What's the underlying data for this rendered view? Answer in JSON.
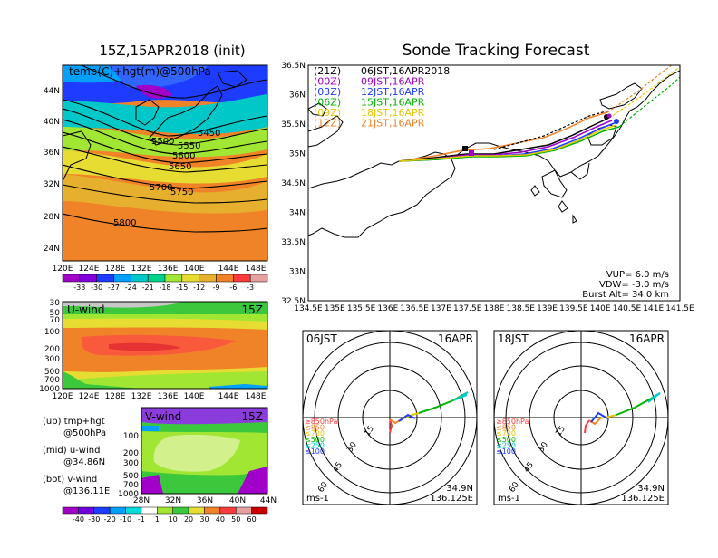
{
  "header": {
    "left_title": "15Z,15APR2018 (init)",
    "right_title": "Sonde Tracking Forecast"
  },
  "map500": {
    "label": "temp(C)+hgt(m)@500hPa",
    "contour_labels": [
      "5450",
      "5500",
      "5550",
      "5600",
      "5650",
      "5700",
      "5750",
      "5800"
    ],
    "lat_ticks": [
      "44N",
      "40N",
      "36N",
      "32N",
      "28N",
      "24N"
    ],
    "lon_ticks": [
      "120E",
      "124E",
      "128E",
      "132E",
      "136E",
      "140E",
      "144E",
      "148E"
    ],
    "colorbar_labels": [
      "-33",
      "-30",
      "-27",
      "-24",
      "-21",
      "-18",
      "-15",
      "-12",
      "-9",
      "-6",
      "-3"
    ],
    "colorbar_colors": [
      "#a000c8",
      "#8200dc",
      "#1e3cff",
      "#00a0ff",
      "#00c8c8",
      "#00d28c",
      "#a0e632",
      "#e6dc32",
      "#e6af2d",
      "#f08228",
      "#fa3c3c",
      "#e6a0a0"
    ]
  },
  "uwind": {
    "label": "U-wind",
    "time": "15Z",
    "p_ticks": [
      "30",
      "50",
      "70",
      "100",
      "200",
      "300",
      "500",
      "700",
      "1000"
    ],
    "lon_ticks": [
      "120E",
      "124E",
      "128E",
      "132E",
      "136E",
      "140E",
      "144E",
      "148E"
    ]
  },
  "vwind": {
    "label": "V-wind",
    "time": "15Z",
    "p_ticks": [
      "100",
      "200",
      "300",
      "500",
      "700",
      "1000"
    ],
    "lat_ticks": [
      "28N",
      "32N",
      "36N",
      "40N",
      "44N"
    ]
  },
  "legend_notes": [
    {
      "a": "(up) tmp+hgt",
      "b": "@500hPa"
    },
    {
      "a": "(mid) u-wind",
      "b": "@34.86N"
    },
    {
      "a": "(bot) v-wind",
      "b": "@136.11E"
    }
  ],
  "wind_colorbar": {
    "labels": [
      "-40",
      "-30",
      "-20",
      "-10",
      "-1",
      "1",
      "10",
      "20",
      "30",
      "40",
      "50",
      "60"
    ],
    "colors": [
      "#a000c8",
      "#6e00dc",
      "#1e3cff",
      "#00a0ff",
      "#00dcdc",
      "#ffffff",
      "#a0e632",
      "#3cc83c",
      "#e6dc32",
      "#f08228",
      "#fa3c3c",
      "#e6a0a0",
      "#c80000"
    ]
  },
  "track_map": {
    "lat_ticks": [
      "36.5N",
      "36N",
      "35.5N",
      "35N",
      "34.5N",
      "34N",
      "33.5N",
      "33N",
      "32.5N"
    ],
    "lon_ticks": [
      "134.5E",
      "135E",
      "135.5E",
      "136E",
      "136.5E",
      "137E",
      "137.5E",
      "138E",
      "138.5E",
      "139E",
      "139.5E",
      "140E",
      "140.5E",
      "141E",
      "141.5E"
    ],
    "legend": [
      {
        "run": "(21Z)",
        "text": "06JST,16APR2018",
        "color": "#000000"
      },
      {
        "run": "(00Z)",
        "text": "09JST,16APR",
        "color": "#a000c8"
      },
      {
        "run": "(03Z)",
        "text": "12JST,16APR",
        "color": "#1e3cff"
      },
      {
        "run": "(06Z)",
        "text": "15JST,16APR",
        "color": "#00b400"
      },
      {
        "run": "(09Z)",
        "text": "18JST,16APR",
        "color": "#e6c800"
      },
      {
        "run": "(12Z)",
        "text": "21JST,16APR",
        "color": "#f08228"
      }
    ],
    "stats": [
      "VUP=  6.0  m/s",
      "VDW= -3.0  m/s",
      "Burst Alt= 34.0  km"
    ]
  },
  "hodographs": [
    {
      "time": "06JST",
      "date": "16APR",
      "lat": "34.9N",
      "lon": "136.125E",
      "unit": "ms-1",
      "ring_labels": [
        "15",
        "30",
        "45",
        "60"
      ]
    },
    {
      "time": "18JST",
      "date": "16APR",
      "lat": "34.9N",
      "lon": "136.125E",
      "unit": "ms-1",
      "ring_labels": [
        "15",
        "30",
        "45",
        "60"
      ]
    }
  ],
  "hodo_levels": [
    {
      "label": "≥850hPa",
      "color": "#fa3c3c"
    },
    {
      "label": "≤850",
      "color": "#f08228"
    },
    {
      "label": "≤700",
      "color": "#e6c800"
    },
    {
      "label": "≤500",
      "color": "#00b400"
    },
    {
      "label": "≤250",
      "color": "#00c8c8"
    },
    {
      "label": "≤100",
      "color": "#1e3cff"
    }
  ]
}
